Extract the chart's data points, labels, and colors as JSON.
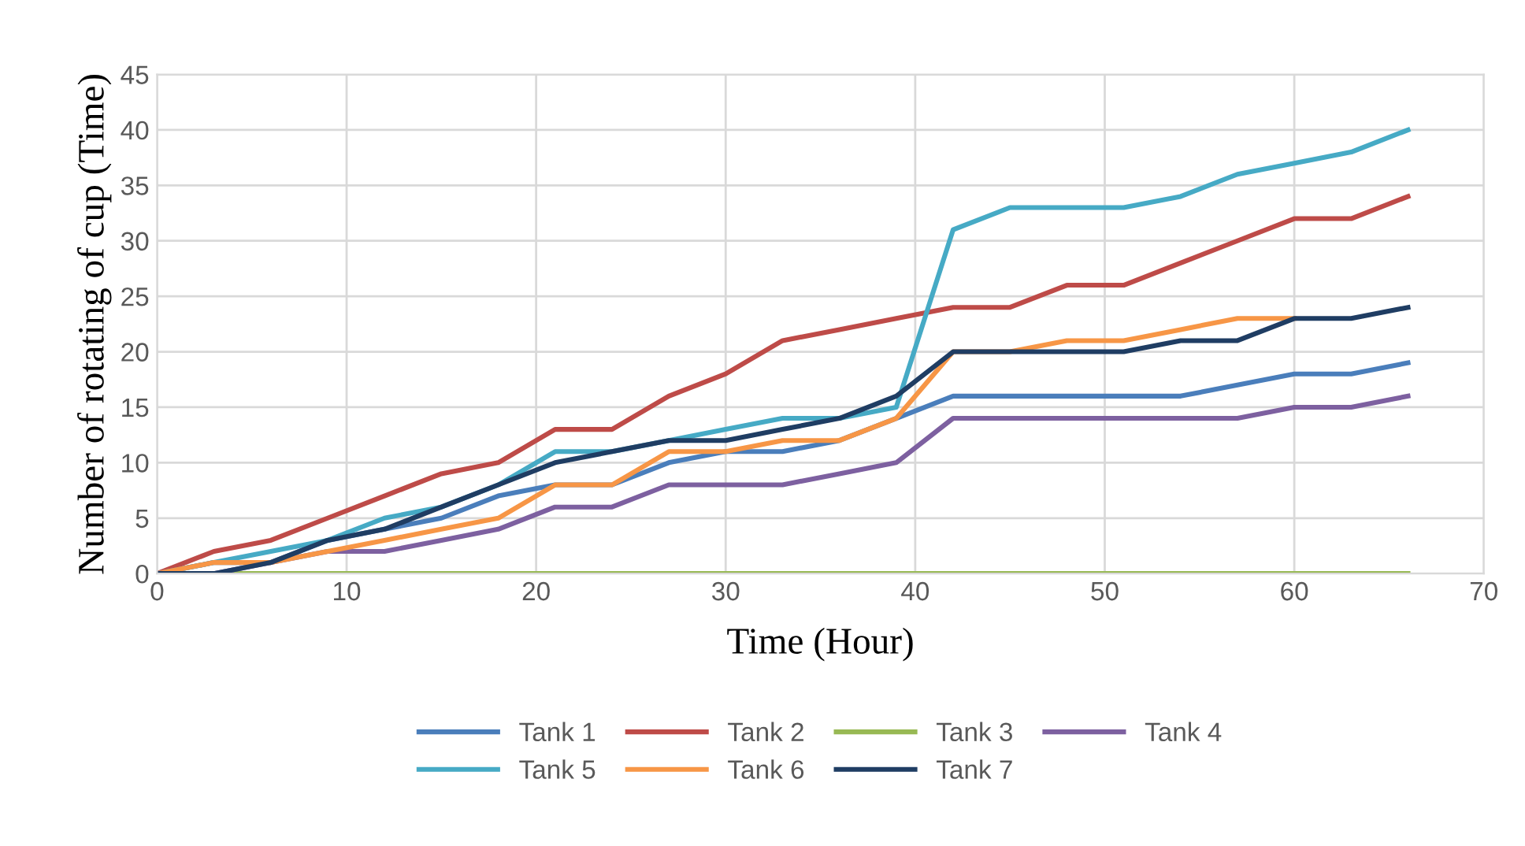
{
  "chart_data": {
    "type": "line",
    "xlabel": "Time (Hour)",
    "ylabel": "Number of rotating of cup (Time)",
    "x": [
      0,
      3,
      6,
      9,
      12,
      15,
      18,
      21,
      24,
      27,
      30,
      33,
      36,
      39,
      42,
      45,
      48,
      51,
      54,
      57,
      60,
      63,
      66
    ],
    "xlim": [
      0,
      70
    ],
    "xticks": [
      0,
      10,
      20,
      30,
      40,
      50,
      60,
      70
    ],
    "ylim": [
      0,
      45
    ],
    "yticks": [
      0,
      5,
      10,
      15,
      20,
      25,
      30,
      35,
      40,
      45
    ],
    "grid": true,
    "legend": "bottom",
    "marker": "none",
    "line_style": "solid",
    "series": [
      {
        "name": "Tank 1",
        "color": "#4a7ebb",
        "values": [
          0,
          1,
          1,
          3,
          4,
          5,
          7,
          8,
          8,
          10,
          11,
          11,
          12,
          14,
          16,
          16,
          16,
          16,
          16,
          17,
          18,
          18,
          19
        ]
      },
      {
        "name": "Tank 2",
        "color": "#be4b48",
        "values": [
          0,
          2,
          3,
          5,
          7,
          9,
          10,
          13,
          13,
          16,
          18,
          21,
          22,
          23,
          24,
          24,
          26,
          26,
          28,
          30,
          32,
          32,
          34
        ]
      },
      {
        "name": "Tank 3",
        "color": "#98b954",
        "values": [
          0,
          0,
          0,
          0,
          0,
          0,
          0,
          0,
          0,
          0,
          0,
          0,
          0,
          0,
          0,
          0,
          0,
          0,
          0,
          0,
          0,
          0,
          0
        ]
      },
      {
        "name": "Tank 4",
        "color": "#7d60a0",
        "values": [
          0,
          0,
          1,
          2,
          2,
          3,
          4,
          6,
          6,
          8,
          8,
          8,
          9,
          10,
          14,
          14,
          14,
          14,
          14,
          14,
          15,
          15,
          16
        ]
      },
      {
        "name": "Tank 5",
        "color": "#46aac5",
        "values": [
          0,
          1,
          2,
          3,
          5,
          6,
          8,
          11,
          11,
          12,
          13,
          14,
          14,
          15,
          31,
          33,
          33,
          33,
          34,
          36,
          37,
          38,
          40
        ]
      },
      {
        "name": "Tank 6",
        "color": "#f79646",
        "values": [
          0,
          1,
          1,
          2,
          3,
          4,
          5,
          8,
          8,
          11,
          11,
          12,
          12,
          14,
          20,
          20,
          21,
          21,
          22,
          23,
          23,
          null,
          null
        ]
      },
      {
        "name": "Tank 7",
        "color": "#1f3d63",
        "values": [
          0,
          0,
          1,
          3,
          4,
          6,
          8,
          10,
          11,
          12,
          12,
          13,
          14,
          16,
          20,
          20,
          20,
          20,
          21,
          21,
          23,
          23,
          24
        ]
      }
    ]
  }
}
